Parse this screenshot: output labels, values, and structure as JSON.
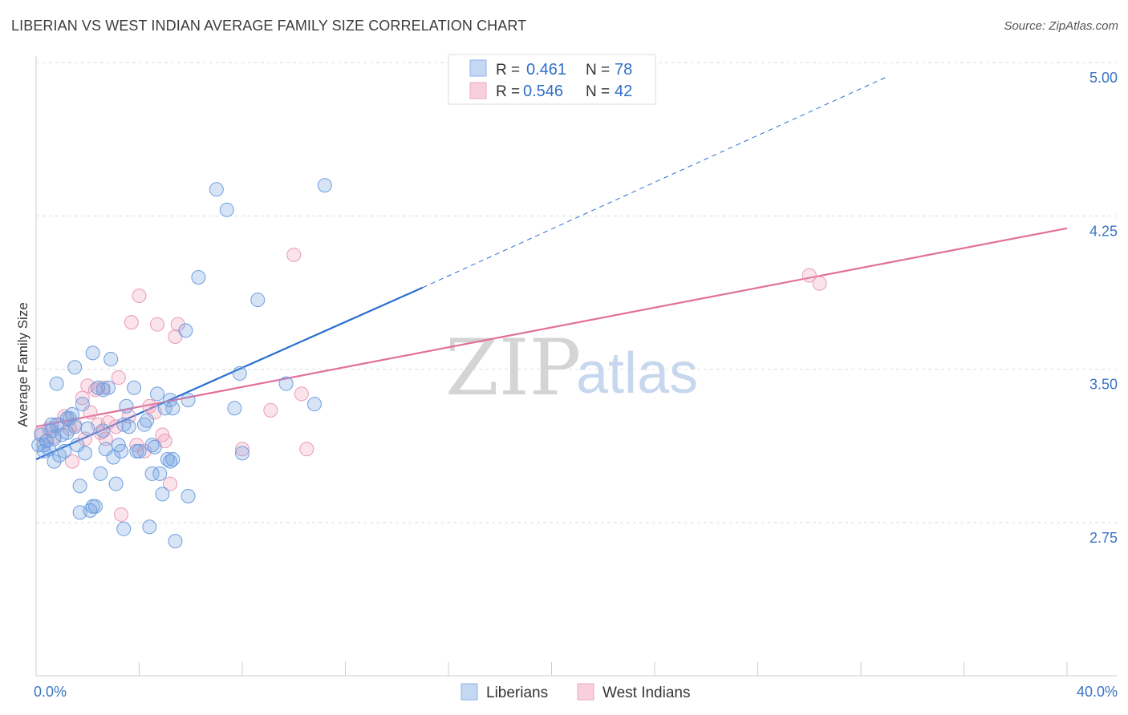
{
  "title": "LIBERIAN VS WEST INDIAN AVERAGE FAMILY SIZE CORRELATION CHART",
  "source": "Source: ZipAtlas.com",
  "watermark": {
    "zip": "ZIP",
    "atlas": "atlas"
  },
  "chart_data": {
    "type": "scatter",
    "ylabel": "Average Family Size",
    "xlim": [
      0,
      40
    ],
    "ylim": [
      2.0,
      5.1
    ],
    "x_tick_labels": [
      "0.0%",
      "40.0%"
    ],
    "y_ticks": [
      2.75,
      3.5,
      4.25,
      5.0
    ],
    "y_tick_labels": [
      "2.75",
      "3.50",
      "4.25",
      "5.00"
    ],
    "grid": true,
    "colors": {
      "liberians": "#6f9fe0",
      "west_indians": "#ef9ab8",
      "liberians_line": "#2a6fd0",
      "west_indians_line": "#e26f9c"
    },
    "legend": {
      "placement": "top-center",
      "rows": [
        {
          "r_label": "R = ",
          "r_value": "0.461",
          "n_label": "N = ",
          "n_value": "78"
        },
        {
          "r_label": "R = ",
          "r_value": "0.546",
          "n_label": "N = ",
          "n_value": "42"
        }
      ]
    },
    "series": [
      {
        "name": "Liberians",
        "trend": {
          "x0": 0.0,
          "y0": 3.13,
          "x1": 15.0,
          "y1": 3.97,
          "dashed_to_x": 33.0,
          "dashed_to_y": 5.0
        },
        "points": [
          [
            0.2,
            3.25
          ],
          [
            0.3,
            3.2
          ],
          [
            0.4,
            3.22
          ],
          [
            0.5,
            3.18
          ],
          [
            0.6,
            3.27
          ],
          [
            0.7,
            3.23
          ],
          [
            0.8,
            3.3
          ],
          [
            0.9,
            3.15
          ],
          [
            0.7,
            3.12
          ],
          [
            0.8,
            3.5
          ],
          [
            1.0,
            3.25
          ],
          [
            1.1,
            3.17
          ],
          [
            1.2,
            3.26
          ],
          [
            1.3,
            3.33
          ],
          [
            1.4,
            3.35
          ],
          [
            1.5,
            3.29
          ],
          [
            1.5,
            3.58
          ],
          [
            1.6,
            3.2
          ],
          [
            1.7,
            3.0
          ],
          [
            1.8,
            3.4
          ],
          [
            1.9,
            3.16
          ],
          [
            2.0,
            3.28
          ],
          [
            2.1,
            2.88
          ],
          [
            2.2,
            3.65
          ],
          [
            2.3,
            2.9
          ],
          [
            2.4,
            3.48
          ],
          [
            2.5,
            3.06
          ],
          [
            2.6,
            3.27
          ],
          [
            2.7,
            3.18
          ],
          [
            2.8,
            3.48
          ],
          [
            2.9,
            3.62
          ],
          [
            3.0,
            3.14
          ],
          [
            3.1,
            3.01
          ],
          [
            3.2,
            3.2
          ],
          [
            3.3,
            3.17
          ],
          [
            3.4,
            2.79
          ],
          [
            3.5,
            3.39
          ],
          [
            3.6,
            3.29
          ],
          [
            3.4,
            3.3
          ],
          [
            3.8,
            3.48
          ],
          [
            4.0,
            3.17
          ],
          [
            4.2,
            3.3
          ],
          [
            4.3,
            3.32
          ],
          [
            4.4,
            2.8
          ],
          [
            4.5,
            3.06
          ],
          [
            4.5,
            3.2
          ],
          [
            4.6,
            3.19
          ],
          [
            4.7,
            3.45
          ],
          [
            4.8,
            3.06
          ],
          [
            4.9,
            2.96
          ],
          [
            5.0,
            3.38
          ],
          [
            5.2,
            3.42
          ],
          [
            5.3,
            3.38
          ],
          [
            5.2,
            3.12
          ],
          [
            5.3,
            3.13
          ],
          [
            5.4,
            2.73
          ],
          [
            5.9,
            3.42
          ],
          [
            5.8,
            3.76
          ],
          [
            5.9,
            2.95
          ],
          [
            6.3,
            4.02
          ],
          [
            7.0,
            4.45
          ],
          [
            7.4,
            4.35
          ],
          [
            7.7,
            3.38
          ],
          [
            7.9,
            3.55
          ],
          [
            8.0,
            3.16
          ],
          [
            8.6,
            3.91
          ],
          [
            9.7,
            3.5
          ],
          [
            10.8,
            3.4
          ],
          [
            11.2,
            4.47
          ],
          [
            1.7,
            2.87
          ],
          [
            2.2,
            2.9
          ],
          [
            0.1,
            3.2
          ],
          [
            0.3,
            3.17
          ],
          [
            1.2,
            3.33
          ],
          [
            2.6,
            3.47
          ],
          [
            0.6,
            3.3
          ],
          [
            3.9,
            3.17
          ],
          [
            5.1,
            3.13
          ]
        ]
      },
      {
        "name": "West Indians",
        "trend": {
          "x0": 0.0,
          "y0": 3.29,
          "x1": 40.0,
          "y1": 4.26
        },
        "points": [
          [
            0.2,
            3.26
          ],
          [
            0.4,
            3.22
          ],
          [
            0.5,
            3.28
          ],
          [
            0.7,
            3.24
          ],
          [
            0.9,
            3.3
          ],
          [
            1.1,
            3.34
          ],
          [
            1.3,
            3.28
          ],
          [
            1.4,
            3.12
          ],
          [
            1.5,
            3.3
          ],
          [
            1.8,
            3.43
          ],
          [
            1.9,
            3.23
          ],
          [
            2.0,
            3.49
          ],
          [
            2.1,
            3.36
          ],
          [
            2.3,
            3.47
          ],
          [
            2.4,
            3.3
          ],
          [
            2.5,
            3.26
          ],
          [
            2.6,
            3.48
          ],
          [
            2.7,
            3.23
          ],
          [
            2.8,
            3.31
          ],
          [
            3.1,
            3.29
          ],
          [
            3.2,
            3.53
          ],
          [
            3.3,
            2.86
          ],
          [
            3.6,
            3.34
          ],
          [
            3.7,
            3.8
          ],
          [
            3.9,
            3.2
          ],
          [
            4.0,
            3.93
          ],
          [
            4.2,
            3.17
          ],
          [
            4.4,
            3.39
          ],
          [
            4.6,
            3.36
          ],
          [
            4.7,
            3.79
          ],
          [
            4.9,
            3.25
          ],
          [
            5.0,
            3.22
          ],
          [
            5.2,
            3.01
          ],
          [
            5.4,
            3.73
          ],
          [
            5.5,
            3.79
          ],
          [
            8.0,
            3.18
          ],
          [
            9.1,
            3.37
          ],
          [
            10.0,
            4.13
          ],
          [
            10.3,
            3.45
          ],
          [
            10.5,
            3.18
          ],
          [
            30.0,
            4.03
          ],
          [
            30.4,
            3.99
          ]
        ]
      }
    ]
  }
}
